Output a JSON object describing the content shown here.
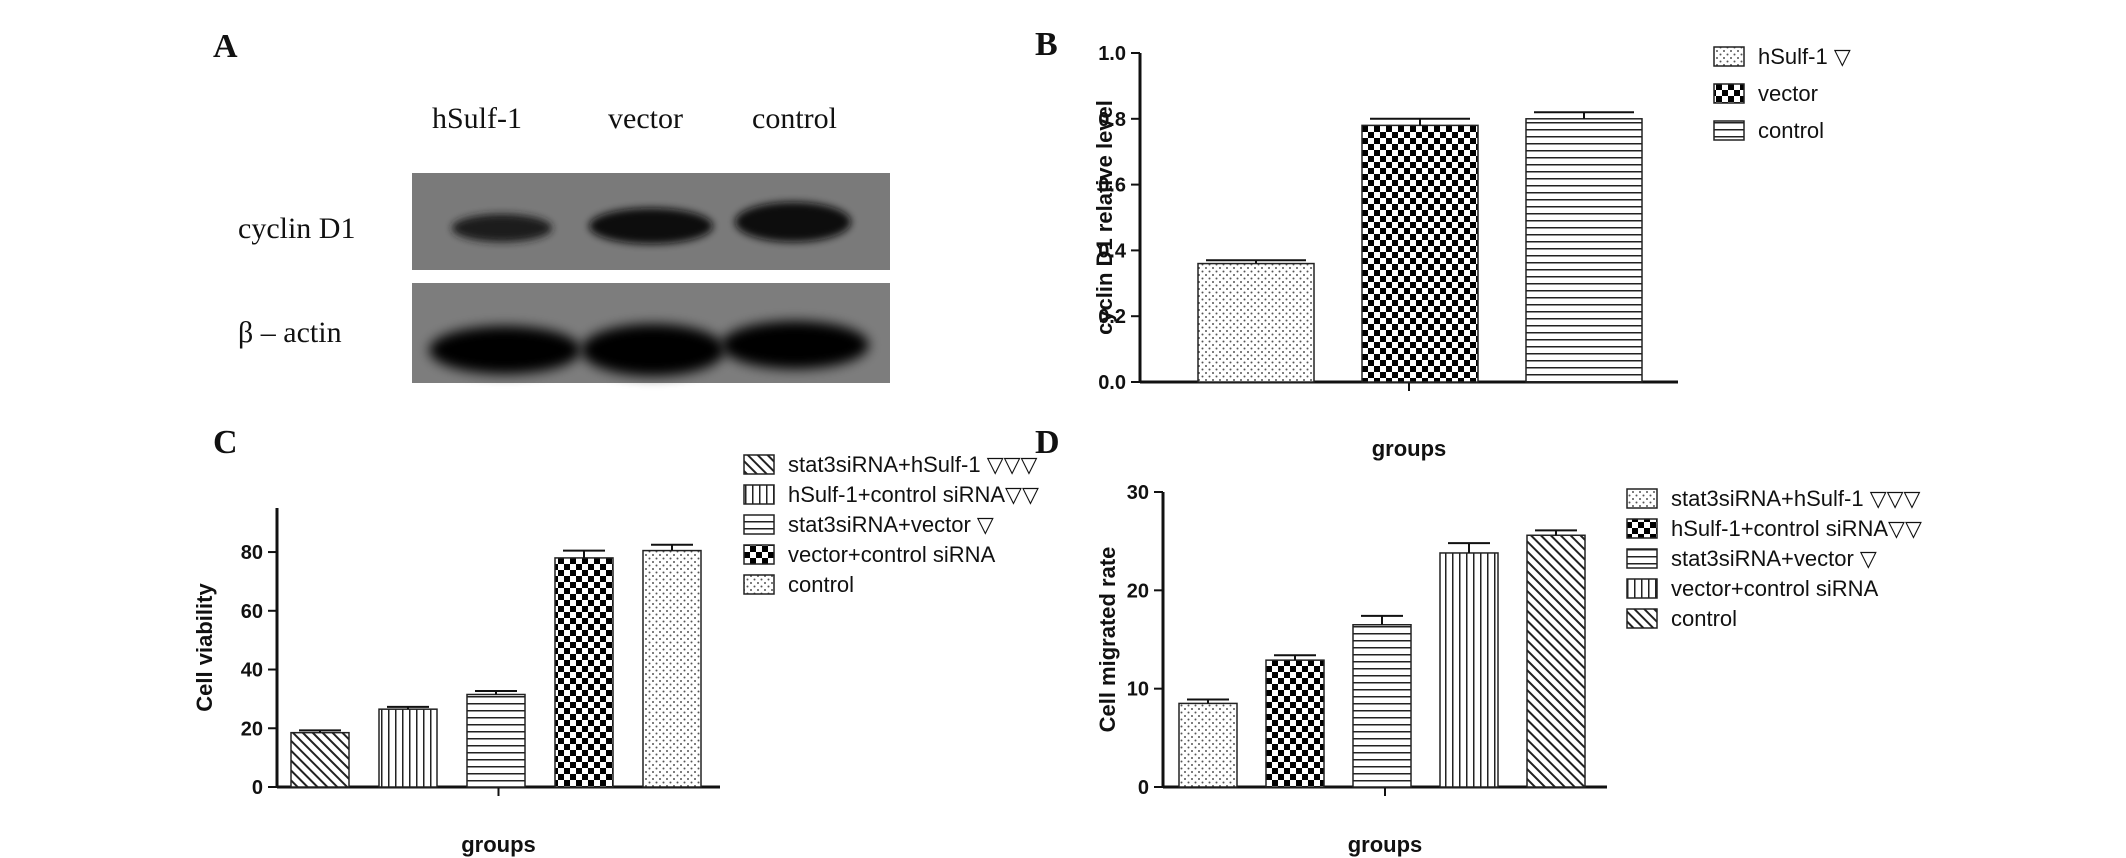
{
  "panels": {
    "A": "A",
    "B": "B",
    "C": "C",
    "D": "D"
  },
  "blot": {
    "lanes": [
      "hSulf-1",
      "vector",
      "control"
    ],
    "rows": [
      "cyclin D1",
      "β – actin"
    ]
  },
  "chart_data": [
    {
      "id": "B",
      "type": "bar",
      "title": "",
      "xlabel": "groups",
      "ylabel": "cyclin D1 relative level",
      "ylim": [
        0,
        1.0
      ],
      "yticks": [
        "0.0",
        "0.2",
        "0.4",
        "0.6",
        "0.8",
        "1.0"
      ],
      "legend_position": "top-right",
      "series": [
        {
          "name": "hSulf-1 ▽",
          "value": 0.36,
          "error": 0.01,
          "pattern": "dots"
        },
        {
          "name": "vector",
          "value": 0.78,
          "error": 0.02,
          "pattern": "checker"
        },
        {
          "name": "control",
          "value": 0.8,
          "error": 0.02,
          "pattern": "hlines"
        }
      ]
    },
    {
      "id": "C",
      "type": "bar",
      "title": "",
      "xlabel": "groups",
      "ylabel": "Cell viability",
      "ylim": [
        0,
        95
      ],
      "yticks": [
        "0",
        "20",
        "40",
        "60",
        "80"
      ],
      "legend_position": "top-right",
      "series": [
        {
          "name": "stat3siRNA+hSulf-1 ▽▽▽",
          "value": 18.5,
          "error": 0.8,
          "pattern": "diag"
        },
        {
          "name": "hSulf-1+control siRNA▽▽",
          "value": 26.5,
          "error": 0.8,
          "pattern": "vlines"
        },
        {
          "name": "stat3siRNA+vector   ▽",
          "value": 31.5,
          "error": 1.2,
          "pattern": "hlines"
        },
        {
          "name": "vector+control siRNA",
          "value": 78,
          "error": 2.5,
          "pattern": "checker"
        },
        {
          "name": "control",
          "value": 80.5,
          "error": 2.0,
          "pattern": "dots"
        }
      ]
    },
    {
      "id": "D",
      "type": "bar",
      "title": "",
      "xlabel": "groups",
      "ylabel": "Cell migrated rate",
      "ylim": [
        0,
        30
      ],
      "yticks": [
        "0",
        "10",
        "20",
        "30"
      ],
      "legend_position": "top-right",
      "series": [
        {
          "name": "stat3siRNA+hSulf-1 ▽▽▽",
          "value": 8.5,
          "error": 0.4,
          "pattern": "dots"
        },
        {
          "name": "hSulf-1+control siRNA▽▽",
          "value": 12.9,
          "error": 0.5,
          "pattern": "checker"
        },
        {
          "name": "stat3siRNA+vector ▽",
          "value": 16.5,
          "error": 0.9,
          "pattern": "hlines"
        },
        {
          "name": "vector+control siRNA",
          "value": 23.8,
          "error": 1.0,
          "pattern": "vlines"
        },
        {
          "name": "control",
          "value": 25.6,
          "error": 0.5,
          "pattern": "diag"
        }
      ]
    }
  ]
}
